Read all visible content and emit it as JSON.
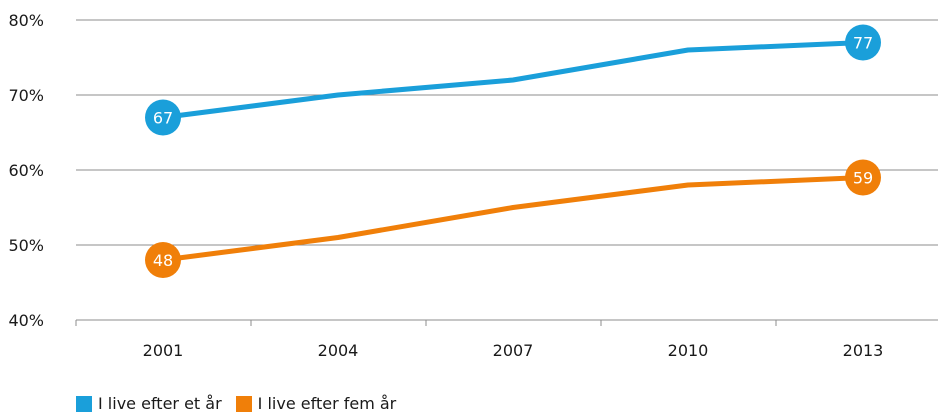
{
  "chart_data": {
    "type": "line",
    "title": "",
    "xlabel": "",
    "ylabel": "",
    "categories": [
      "2001",
      "2004",
      "2007",
      "2010",
      "2013"
    ],
    "ylim": [
      40,
      80
    ],
    "yticks": [
      40,
      50,
      60,
      70,
      80
    ],
    "ytick_labels": [
      "40%",
      "50%",
      "60%",
      "70%",
      "80%"
    ],
    "grid": true,
    "legend_position": "bottom-left",
    "series": [
      {
        "name": "I live efter et år",
        "color": "#1a9fda",
        "values": [
          67,
          70,
          72,
          76,
          77
        ],
        "labels": [
          {
            "index": 0,
            "text": "67"
          },
          {
            "index": 4,
            "text": "77"
          }
        ]
      },
      {
        "name": "I live efter fem år",
        "color": "#f07f09",
        "values": [
          48,
          51,
          55,
          58,
          59
        ],
        "labels": [
          {
            "index": 0,
            "text": "48"
          },
          {
            "index": 4,
            "text": "59"
          }
        ]
      }
    ]
  }
}
